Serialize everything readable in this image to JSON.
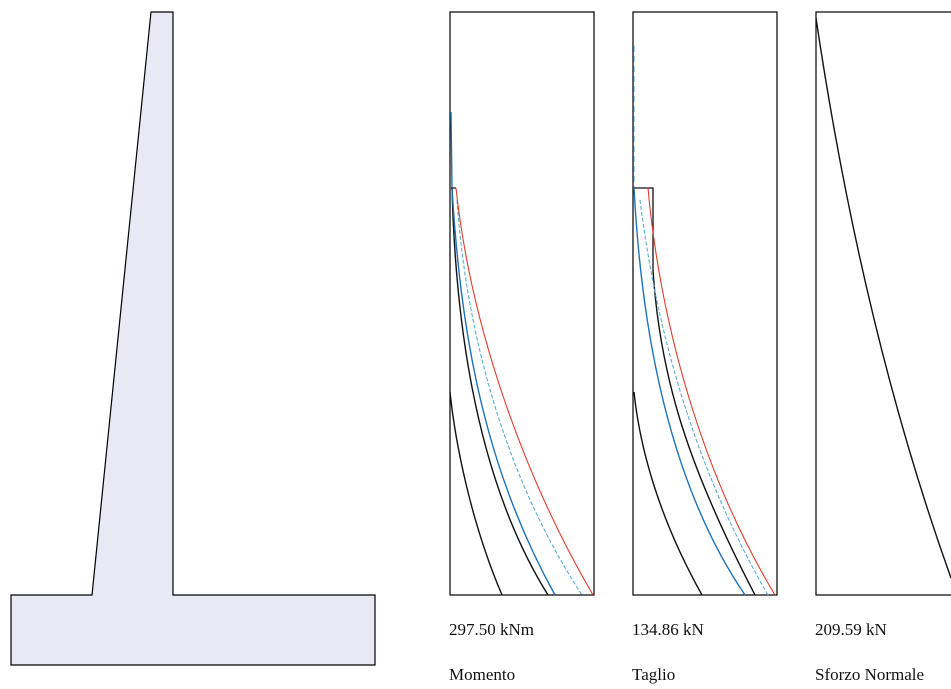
{
  "colors": {
    "wall_fill": "#e9e9f6",
    "outline": "#000000",
    "curve_black": "#111111",
    "curve_blue": "#1f72b8",
    "curve_cyan": "#5aaecf",
    "curve_red": "#e03c2c"
  },
  "panels": [
    {
      "id": "momento",
      "value_text": "297.50 kNm",
      "caption": "Momento"
    },
    {
      "id": "taglio",
      "value_text": "134.86 kN",
      "caption": "Taglio"
    },
    {
      "id": "sforzo",
      "value_text": "209.59 kN",
      "caption": "Sforzo Normale"
    }
  ]
}
